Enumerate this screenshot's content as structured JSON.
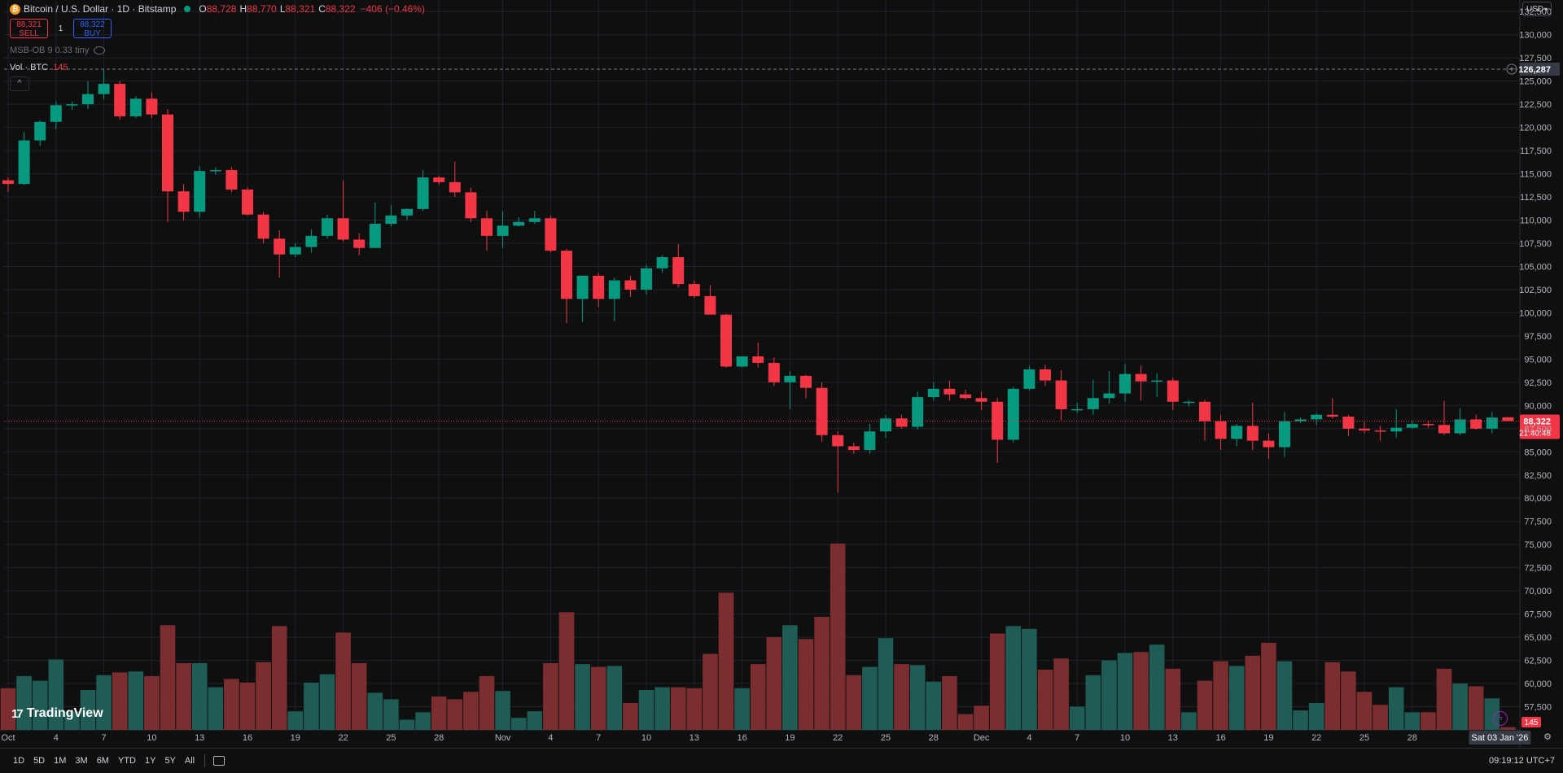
{
  "header": {
    "symbol": "Bitcoin / U.S. Dollar · 1D · Bitstamp",
    "o_label": "O",
    "o_value": "88,728",
    "h_label": "H",
    "h_value": "88,770",
    "l_label": "L",
    "l_value": "88,321",
    "c_label": "C",
    "c_value": "88,322",
    "change": "−406 (−0.46%)"
  },
  "trade": {
    "sell_price": "88,321",
    "sell_label": "SELL",
    "spread": "1",
    "buy_price": "88,322",
    "buy_label": "BUY"
  },
  "indicators": {
    "msb": "MSB-OB 9 0.33 tiny",
    "vol_label": "Vol · BTC",
    "vol_value": "145"
  },
  "currency": "USD",
  "logo": "TradingView",
  "bottom": {
    "ranges": [
      "1D",
      "5D",
      "1M",
      "3M",
      "6M",
      "YTD",
      "1Y",
      "5Y",
      "All"
    ],
    "clock": "09:19:12 UTC+7"
  },
  "colors": {
    "up": "#089981",
    "down": "#f23645",
    "vol_up": "#1e5c55",
    "vol_down": "#7c2d30",
    "bg": "#0f0f0f",
    "grid": "#1e222d"
  },
  "chart_data": {
    "type": "candlestick",
    "ylim": [
      55000,
      133750
    ],
    "yticks": [
      "132,500",
      "130,000",
      "127,500",
      "125,000",
      "122,500",
      "120,000",
      "117,500",
      "115,000",
      "112,500",
      "110,000",
      "107,500",
      "105,000",
      "102,500",
      "100,000",
      "97,500",
      "95,000",
      "92,500",
      "90,000",
      "87,500",
      "85,000",
      "82,500",
      "80,000",
      "77,500",
      "75,000",
      "72,500",
      "70,000",
      "67,500",
      "65,000",
      "62,500",
      "60,000",
      "57,500"
    ],
    "xticks": [
      {
        "i": 0,
        "label": "Oct"
      },
      {
        "i": 3,
        "label": "4"
      },
      {
        "i": 6,
        "label": "7"
      },
      {
        "i": 9,
        "label": "10"
      },
      {
        "i": 12,
        "label": "13"
      },
      {
        "i": 15,
        "label": "16"
      },
      {
        "i": 18,
        "label": "19"
      },
      {
        "i": 21,
        "label": "22"
      },
      {
        "i": 24,
        "label": "25"
      },
      {
        "i": 27,
        "label": "28"
      },
      {
        "i": 31,
        "label": "Nov"
      },
      {
        "i": 34,
        "label": "4"
      },
      {
        "i": 37,
        "label": "7"
      },
      {
        "i": 40,
        "label": "10"
      },
      {
        "i": 43,
        "label": "13"
      },
      {
        "i": 46,
        "label": "16"
      },
      {
        "i": 49,
        "label": "19"
      },
      {
        "i": 52,
        "label": "22"
      },
      {
        "i": 55,
        "label": "25"
      },
      {
        "i": 58,
        "label": "28"
      },
      {
        "i": 61,
        "label": "Dec"
      },
      {
        "i": 64,
        "label": "4"
      },
      {
        "i": 67,
        "label": "7"
      },
      {
        "i": 70,
        "label": "10"
      },
      {
        "i": 73,
        "label": "13"
      },
      {
        "i": 76,
        "label": "16"
      },
      {
        "i": 79,
        "label": "19"
      },
      {
        "i": 82,
        "label": "22"
      },
      {
        "i": 85,
        "label": "25"
      },
      {
        "i": 88,
        "label": "28"
      }
    ],
    "date_label": "Sat 03 Jan '26",
    "high_marker": {
      "value": 126287,
      "label": "126,287"
    },
    "last_price": {
      "value": 88322,
      "label": "88,322",
      "countdown": "21:40:48"
    },
    "vol_last_label": "145",
    "candles": [
      [
        114300,
        114600,
        113000,
        113900,
        59500
      ],
      [
        113900,
        119500,
        113800,
        118600,
        60800
      ],
      [
        118600,
        120800,
        118000,
        120600,
        60300
      ],
      [
        120600,
        122800,
        119800,
        122400,
        62600
      ],
      [
        122400,
        122800,
        121900,
        122500,
        57000
      ],
      [
        122500,
        125000,
        122000,
        123600,
        59300
      ],
      [
        123600,
        126287,
        123000,
        124700,
        60900
      ],
      [
        124700,
        125000,
        120800,
        121200,
        61200
      ],
      [
        121200,
        123400,
        121000,
        123100,
        61300
      ],
      [
        123100,
        123800,
        121000,
        121400,
        60800
      ],
      [
        121400,
        122000,
        109800,
        113100,
        66300
      ],
      [
        113100,
        113900,
        110000,
        110900,
        62200
      ],
      [
        110900,
        115800,
        110300,
        115300,
        62200
      ],
      [
        115300,
        115700,
        114900,
        115400,
        59600
      ],
      [
        115400,
        115700,
        113000,
        113300,
        60500
      ],
      [
        113300,
        113500,
        110500,
        110600,
        60100
      ],
      [
        110600,
        110900,
        107500,
        108000,
        62300
      ],
      [
        108000,
        108900,
        103800,
        106300,
        66200
      ],
      [
        106300,
        107500,
        106000,
        107100,
        57000
      ],
      [
        107100,
        109000,
        106500,
        108300,
        60100
      ],
      [
        108300,
        110600,
        108000,
        110200,
        61000
      ],
      [
        110200,
        114300,
        107700,
        107900,
        65500
      ],
      [
        107900,
        108600,
        106200,
        107000,
        62200
      ],
      [
        107000,
        111900,
        107000,
        109600,
        59000
      ],
      [
        109600,
        111600,
        109300,
        110500,
        58300
      ],
      [
        110500,
        111300,
        110000,
        111200,
        56100
      ],
      [
        111200,
        115400,
        111000,
        114600,
        56900
      ],
      [
        114600,
        114800,
        113800,
        114100,
        58600
      ],
      [
        114100,
        116300,
        112500,
        113000,
        58300
      ],
      [
        113000,
        113500,
        109800,
        110200,
        59100
      ],
      [
        110200,
        111000,
        106700,
        108300,
        60800
      ],
      [
        108300,
        111000,
        107000,
        109400,
        59200
      ],
      [
        109400,
        110300,
        109300,
        109800,
        56300
      ],
      [
        109800,
        111000,
        109600,
        110200,
        57000
      ],
      [
        110200,
        110500,
        106500,
        106700,
        62200
      ],
      [
        106700,
        106900,
        98900,
        101500,
        67700
      ],
      [
        101500,
        104000,
        99000,
        104000,
        62100
      ],
      [
        104000,
        104300,
        100600,
        101500,
        61800
      ],
      [
        101500,
        103800,
        99100,
        103500,
        61900
      ],
      [
        103500,
        104000,
        101700,
        102500,
        57900
      ],
      [
        102500,
        105200,
        102000,
        104800,
        59300
      ],
      [
        104800,
        106200,
        104300,
        106000,
        59600
      ],
      [
        106000,
        107400,
        102700,
        103100,
        59600
      ],
      [
        103100,
        103500,
        101600,
        101800,
        59500
      ],
      [
        101800,
        103000,
        99900,
        99800,
        63200
      ],
      [
        99800,
        99900,
        94100,
        94200,
        69800
      ],
      [
        94200,
        95200,
        94100,
        95300,
        59500
      ],
      [
        95300,
        96800,
        94100,
        94600,
        62100
      ],
      [
        94600,
        95200,
        92100,
        92500,
        65000
      ],
      [
        92500,
        93700,
        89600,
        93200,
        66300
      ],
      [
        93200,
        93300,
        90800,
        91900,
        64800
      ],
      [
        91900,
        92500,
        86100,
        86800,
        67200
      ],
      [
        86800,
        87200,
        80600,
        85600,
        75100
      ],
      [
        85600,
        86000,
        84800,
        85200,
        60900
      ],
      [
        85200,
        88000,
        84800,
        87200,
        61800
      ],
      [
        87200,
        89000,
        86500,
        88600,
        64900
      ],
      [
        88600,
        89000,
        87500,
        87700,
        62100
      ],
      [
        87700,
        91500,
        87400,
        90900,
        62000
      ],
      [
        90900,
        92500,
        90500,
        91800,
        60200
      ],
      [
        91800,
        92700,
        90500,
        91200,
        60800
      ],
      [
        91200,
        91700,
        90600,
        90800,
        56700
      ],
      [
        90800,
        91500,
        89500,
        90400,
        57600
      ],
      [
        90400,
        90800,
        83800,
        86300,
        65400
      ],
      [
        86300,
        92000,
        86000,
        91800,
        66200
      ],
      [
        91800,
        94300,
        91600,
        93900,
        65900
      ],
      [
        93900,
        94400,
        92100,
        92700,
        61500
      ],
      [
        92700,
        93800,
        88400,
        89600,
        62700
      ],
      [
        89600,
        90300,
        89200,
        89600,
        57500
      ],
      [
        89600,
        92800,
        89000,
        90800,
        60900
      ],
      [
        90800,
        93700,
        90200,
        91300,
        62500
      ],
      [
        91300,
        94500,
        90400,
        93400,
        63300
      ],
      [
        93400,
        94300,
        90500,
        92600,
        63400
      ],
      [
        92600,
        93500,
        90900,
        92700,
        64200
      ],
      [
        92700,
        93000,
        89500,
        90400,
        61600
      ],
      [
        90400,
        90600,
        89900,
        90400,
        56900
      ],
      [
        90400,
        90600,
        86200,
        88300,
        60300
      ],
      [
        88300,
        89000,
        85200,
        86400,
        62400
      ],
      [
        86400,
        88000,
        85600,
        87800,
        61900
      ],
      [
        87800,
        90300,
        85200,
        86200,
        63000
      ],
      [
        86200,
        87000,
        84200,
        85500,
        64400
      ],
      [
        85500,
        89300,
        84400,
        88300,
        62400
      ],
      [
        88300,
        88700,
        88100,
        88500,
        57100
      ],
      [
        88500,
        89200,
        87900,
        89000,
        57900
      ],
      [
        89000,
        90800,
        88600,
        88800,
        62300
      ],
      [
        88800,
        89000,
        86700,
        87500,
        61300
      ],
      [
        87500,
        88200,
        87000,
        87300,
        59100
      ],
      [
        87300,
        87800,
        86200,
        87200,
        57700
      ],
      [
        87200,
        89600,
        86500,
        87600,
        59600
      ],
      [
        87600,
        88300,
        87500,
        88000,
        56900
      ],
      [
        88000,
        88400,
        87600,
        87900,
        56900
      ],
      [
        87900,
        90500,
        86800,
        87000,
        61600
      ],
      [
        87000,
        89700,
        86800,
        88500,
        60000
      ],
      [
        88500,
        89000,
        87400,
        87500,
        59700
      ],
      [
        87500,
        89300,
        87000,
        88700,
        58400
      ],
      [
        88728,
        88770,
        88321,
        88322,
        55300
      ]
    ]
  }
}
